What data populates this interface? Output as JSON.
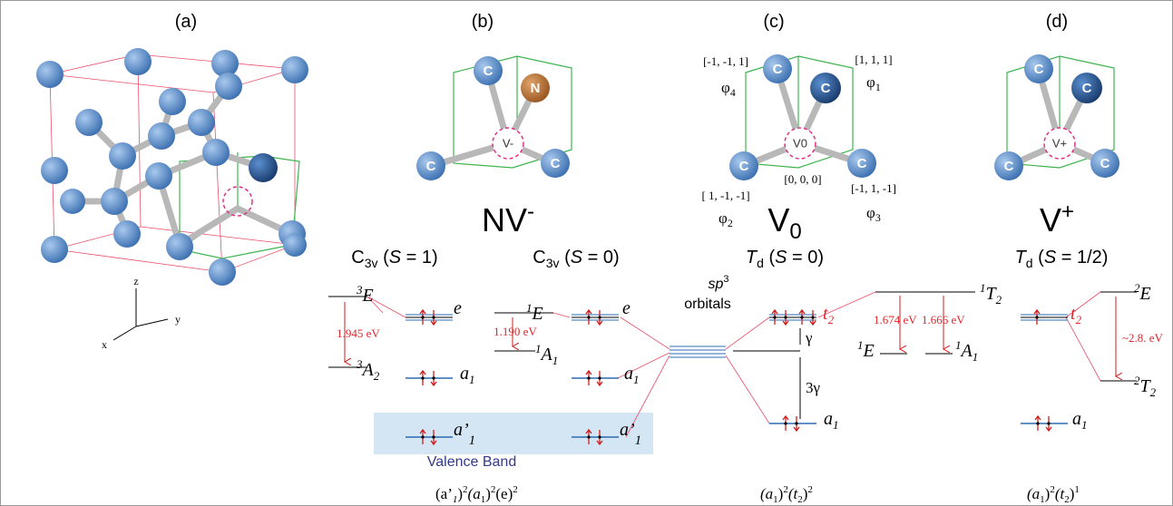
{
  "panels": {
    "a": "(a)",
    "b": "(b)",
    "c": "(c)",
    "d": "(d)"
  },
  "axes": {
    "z": "z",
    "x": "x",
    "y": "y"
  },
  "atoms": {
    "c": "C",
    "n": "N",
    "v_minus": "V-",
    "v_zero": "V0",
    "v_plus": "V+"
  },
  "vectors": {
    "phi1": {
      "coord": "[1, 1, 1]",
      "sym": "φ",
      "sub": "1"
    },
    "phi2": {
      "coord": "[ 1, -1, -1]",
      "sym": "φ",
      "sub": "2"
    },
    "phi3": {
      "coord": "[-1, 1, -1]",
      "sym": "φ",
      "sub": "3"
    },
    "phi4": {
      "coord": "[-1, -1, 1]",
      "sym": "φ",
      "sub": "4"
    },
    "origin": "[0, 0, 0]"
  },
  "defects": [
    {
      "name": "NV",
      "sup": "-"
    },
    {
      "name": "V",
      "sub": "0"
    },
    {
      "name": "V",
      "sup": "+"
    }
  ],
  "symmetries": [
    {
      "group": "C",
      "sub": "3v",
      "open": " (",
      "spin": "S",
      "rest": " = 1)"
    },
    {
      "group": "C",
      "sub": "3v",
      "open": " (",
      "spin": "S",
      "rest": " = 0)"
    },
    {
      "group": "T",
      "sub": "d",
      "open": " (",
      "spin": "S",
      "rest": " = 0)"
    },
    {
      "group": "T",
      "sub": "d",
      "open": " (",
      "spin": "S",
      "rest": " = 1/2)"
    }
  ],
  "levels": {
    "nv_triplet": {
      "upper": {
        "sup": "3",
        "base": "E"
      },
      "lower": {
        "sup": "3",
        "base": "A",
        "sub": "2"
      },
      "gap": "1.945 eV"
    },
    "nv_singlet": {
      "upper": {
        "sup": "1",
        "base": "E"
      },
      "lower": {
        "sup": "1",
        "base": "A",
        "sub": "1"
      },
      "gap": "1.190 eV"
    },
    "v0": {
      "t2": {
        "base": "t",
        "sub": "2"
      },
      "gamma": "γ",
      "three_gamma": "3γ",
      "upper": {
        "sup": "1",
        "base": "T",
        "sub": "2"
      },
      "e": {
        "sup": "1",
        "base": "E"
      },
      "a1": {
        "sup": "1",
        "base": "A",
        "sub": "1"
      },
      "gap1": "1.674 eV",
      "gap2": "1.666 eV"
    },
    "vplus": {
      "t2": {
        "base": "t",
        "sub": "2"
      },
      "upper": {
        "sup": "2",
        "base": "E"
      },
      "lower": {
        "sup": "2",
        "base": "T",
        "sub": "2"
      },
      "gap": "~2.8. eV"
    }
  },
  "orbitals": {
    "e": "e",
    "a": "a",
    "one": "1",
    "a_prime": "a’"
  },
  "sp3": {
    "sp": "sp",
    "sup": "3",
    "label": "orbitals"
  },
  "valence_band": "Valence Band",
  "configs": [
    [
      "(a’",
      "1",
      ")",
      "2",
      "(a",
      "1",
      ")",
      "2",
      "(e)",
      "2"
    ],
    [
      "(a",
      "1",
      ")",
      "2",
      "(t",
      "2",
      ")",
      "2"
    ],
    [
      "(a",
      "1",
      ")",
      "2",
      "(t",
      "2",
      ")",
      "1"
    ]
  ]
}
